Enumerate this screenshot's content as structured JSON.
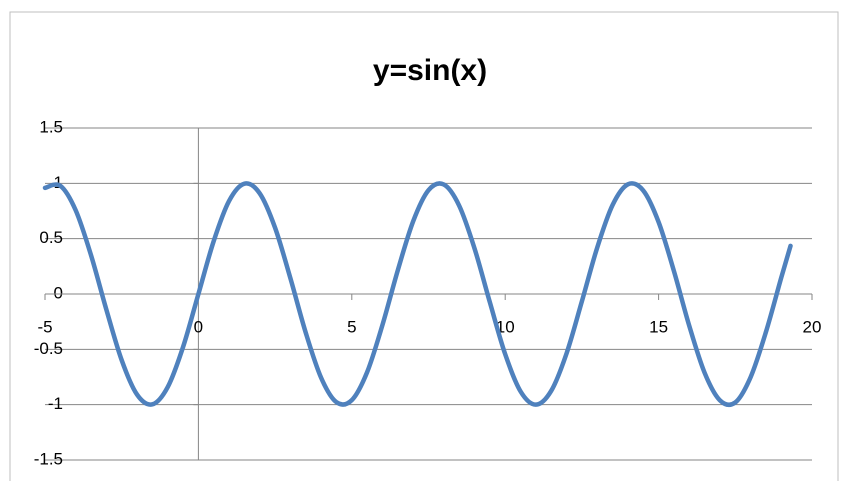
{
  "chart_data": {
    "type": "line",
    "title": "y=sin(x)",
    "x": [
      -5,
      -4.5,
      -4,
      -3.5,
      -3,
      -2.5,
      -2,
      -1.5,
      -1,
      -0.5,
      0,
      0.5,
      1,
      1.5,
      2,
      2.5,
      3,
      3.5,
      4,
      4.5,
      5,
      5.5,
      6,
      6.5,
      7,
      7.5,
      8,
      8.5,
      9,
      9.5,
      10,
      10.5,
      11,
      11.5,
      12,
      12.5,
      13,
      13.5,
      14,
      14.5,
      15,
      15.5,
      16,
      16.5,
      17,
      17.5,
      18,
      18.5,
      19,
      19.3
    ],
    "series": [
      {
        "color": "#4f81bd",
        "values": [
          0.959,
          0.978,
          0.757,
          0.351,
          -0.141,
          -0.598,
          -0.909,
          -0.997,
          -0.841,
          -0.479,
          0,
          0.479,
          0.841,
          0.997,
          0.909,
          0.598,
          0.141,
          -0.351,
          -0.757,
          -0.978,
          -0.959,
          -0.706,
          -0.279,
          0.215,
          0.657,
          0.938,
          0.989,
          0.798,
          0.412,
          -0.075,
          -0.544,
          -0.88,
          -1.0,
          -0.875,
          -0.537,
          -0.066,
          0.42,
          0.804,
          0.991,
          0.935,
          0.65,
          0.207,
          -0.288,
          -0.712,
          -0.961,
          -0.98,
          -0.751,
          -0.342,
          0.15,
          0.435
        ]
      }
    ],
    "xlim": [
      -5,
      20
    ],
    "xticks": [
      -5,
      0,
      5,
      10,
      15,
      20
    ],
    "ylim": [
      -1.5,
      1.5
    ],
    "yticks": [
      -1.5,
      -1,
      -0.5,
      0,
      0.5,
      1,
      1.5
    ],
    "grid": true
  }
}
